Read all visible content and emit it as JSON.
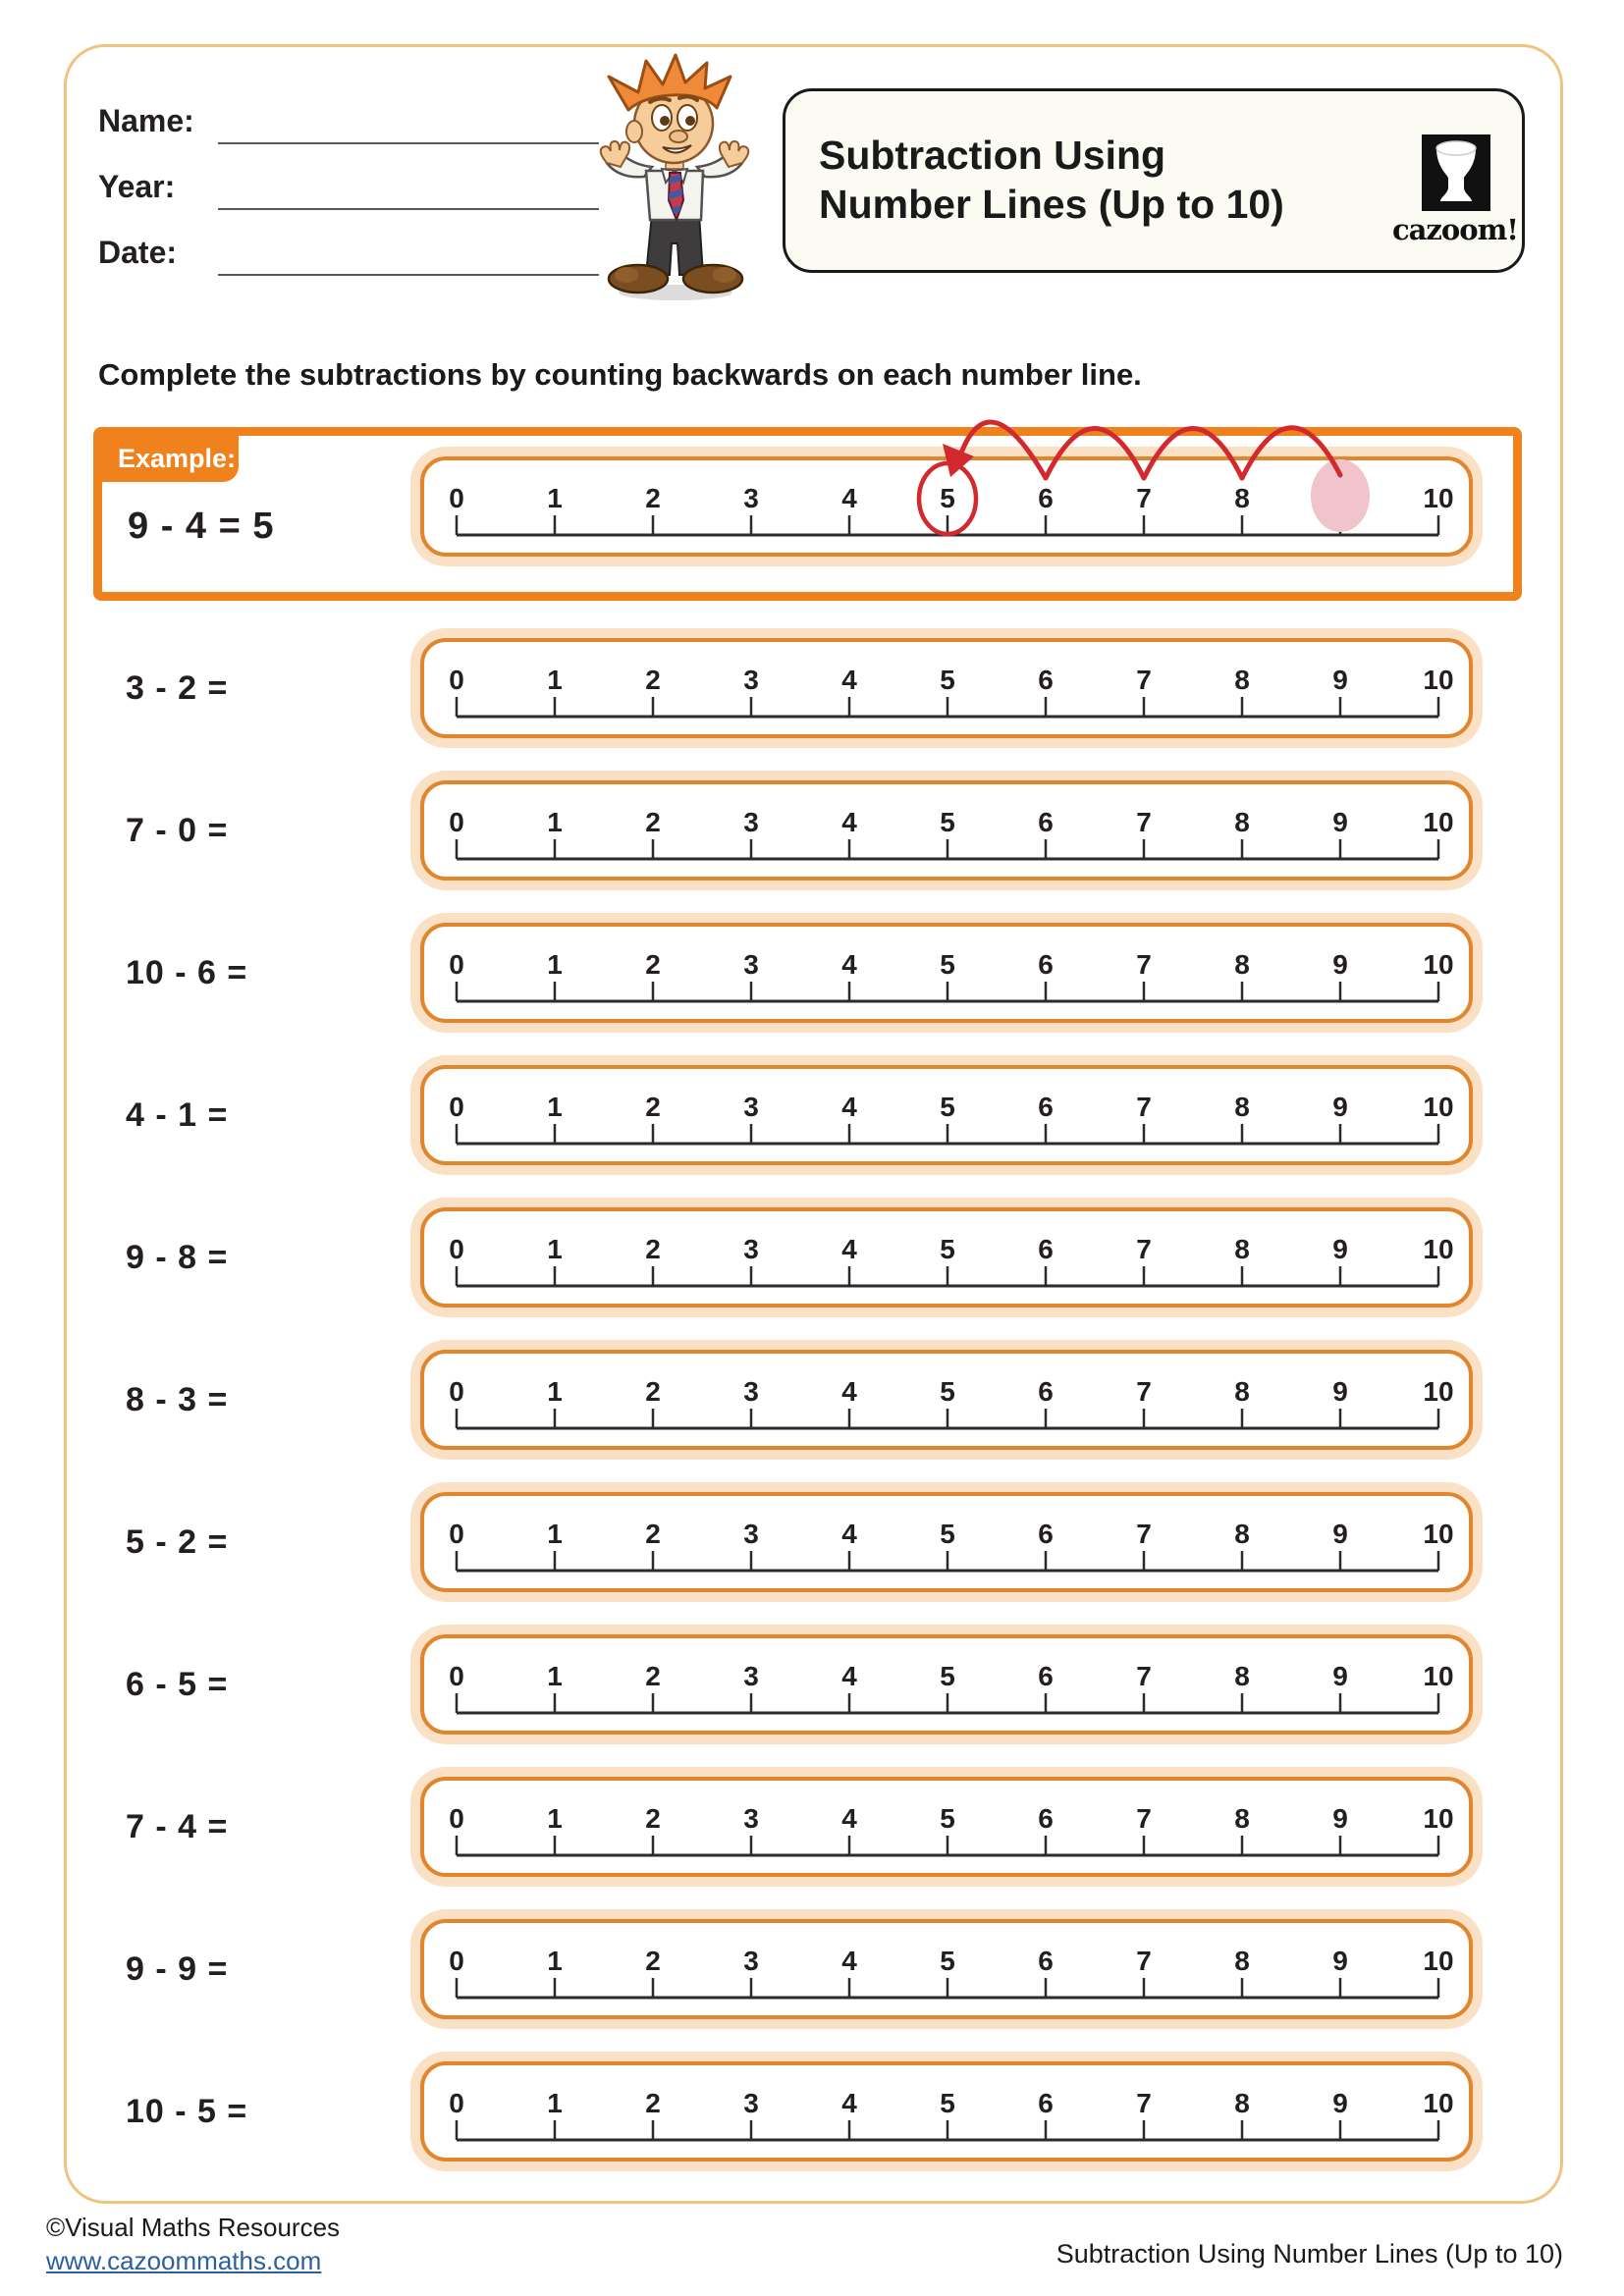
{
  "page": {
    "header": {
      "name_label": "Name:",
      "year_label": "Year:",
      "date_label": "Date:"
    },
    "title": {
      "line1": "Subtraction Using",
      "line2": "Number Lines (Up to 10)",
      "logo_text": "cazoom!"
    },
    "instruction": "Complete the subtractions by counting backwards on each number line.",
    "example": {
      "label": "Example:",
      "equation": "9 - 4 = 5",
      "start": 9,
      "subtract": 4,
      "answer": 5,
      "jumps": 4
    },
    "problems": [
      {
        "expression": "3 - 2 ="
      },
      {
        "expression": "7 - 0 ="
      },
      {
        "expression": "10 - 6 ="
      },
      {
        "expression": "4 - 1 ="
      },
      {
        "expression": "9 - 8 ="
      },
      {
        "expression": "8 - 3 ="
      },
      {
        "expression": "5 - 2 ="
      },
      {
        "expression": "6 - 5 ="
      },
      {
        "expression": "7 - 4 ="
      },
      {
        "expression": "9 - 9 ="
      },
      {
        "expression": "10 - 5 ="
      }
    ],
    "number_line": {
      "min": 0,
      "max": 10,
      "ticks": [
        "0",
        "1",
        "2",
        "3",
        "4",
        "5",
        "6",
        "7",
        "8",
        "9",
        "10"
      ]
    },
    "footer": {
      "copyright": "©Visual Maths Resources",
      "website": "www.cazoommaths.com",
      "page_title": "Subtraction Using Number Lines (Up to 10)"
    },
    "colors": {
      "orange": "#F0821E",
      "box_border": "#E2862E",
      "glow": "#FAE1C6",
      "page_border": "#F2C380",
      "red": "#D2292E",
      "pink": "#F1C3CA",
      "link_blue": "#2B5F9E"
    }
  }
}
